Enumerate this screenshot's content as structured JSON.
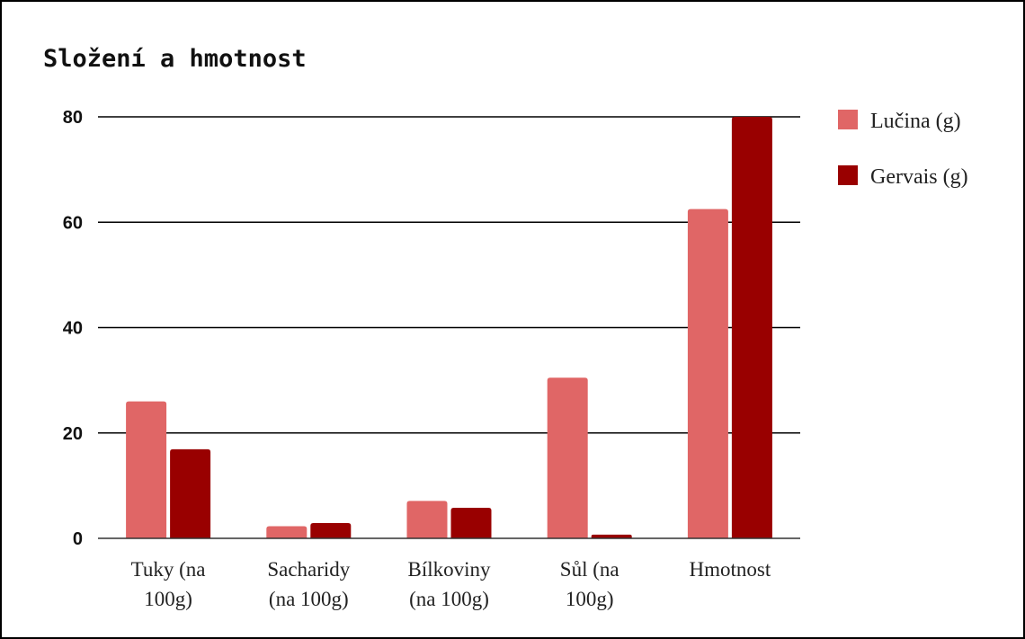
{
  "chart_data": {
    "type": "bar",
    "title": "Složení a hmotnost",
    "xlabel": "",
    "ylabel": "",
    "ylim": [
      0,
      80
    ],
    "yticks": [
      0,
      20,
      40,
      60,
      80
    ],
    "categories": [
      [
        "Tuky (na",
        "100g)"
      ],
      [
        "Sacharidy",
        "(na 100g)"
      ],
      [
        "Bílkoviny",
        "(na 100g)"
      ],
      [
        "Sůl (na",
        "100g)"
      ],
      [
        "Hmotnost"
      ]
    ],
    "series": [
      {
        "name": "Lučina (g)",
        "color": "#e06666",
        "values": [
          26,
          2.3,
          7.1,
          30.5,
          62.5
        ]
      },
      {
        "name": "Gervais (g)",
        "color": "#990000",
        "values": [
          16.9,
          2.9,
          5.8,
          0.7,
          80
        ]
      }
    ],
    "grid": true,
    "legend_position": "right"
  }
}
